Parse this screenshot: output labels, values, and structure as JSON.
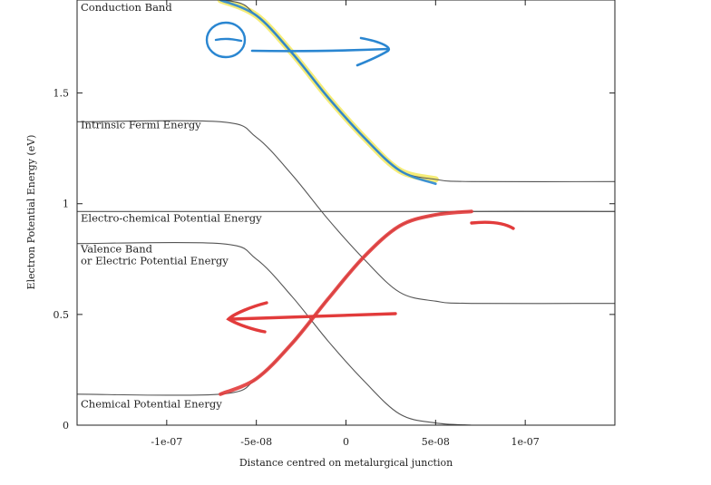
{
  "chart_data": {
    "type": "line",
    "title": "",
    "xlabel": "Distance centred on metalurgical junction",
    "ylabel": "Electron Potential Energy (eV)",
    "xlim": [
      -1.5e-07,
      1.5e-07
    ],
    "ylim": [
      0,
      1.92
    ],
    "x_ticks": [
      {
        "value": -1e-07,
        "label": "-1e-07"
      },
      {
        "value": -5e-08,
        "label": "-5e-08"
      },
      {
        "value": 0,
        "label": "0"
      },
      {
        "value": 5e-08,
        "label": "5e-08"
      },
      {
        "value": 1e-07,
        "label": "1e-07"
      }
    ],
    "y_ticks": [
      {
        "value": 0,
        "label": "0"
      },
      {
        "value": 0.5,
        "label": "0.5"
      },
      {
        "value": 1,
        "label": "1"
      },
      {
        "value": 1.5,
        "label": "1.5"
      }
    ],
    "grid": false,
    "series": [
      {
        "name": "Conduction Band",
        "label_lines": [
          "Conduction Band"
        ],
        "label_y": 1.87,
        "x": [
          -1.5e-07,
          -7e-08,
          -5e-08,
          -3e-08,
          -1e-08,
          1e-08,
          3e-08,
          5e-08,
          7e-08,
          1.5e-07
        ],
        "y": [
          1.92,
          1.92,
          1.85,
          1.68,
          1.48,
          1.3,
          1.15,
          1.11,
          1.1,
          1.1
        ]
      },
      {
        "name": "Intrinsic Fermi Energy",
        "label_lines": [
          "Intrinsic Fermi Energy"
        ],
        "label_y": 1.34,
        "x": [
          -1.5e-07,
          -7e-08,
          -5e-08,
          -3e-08,
          -1e-08,
          1e-08,
          3e-08,
          5e-08,
          7e-08,
          1.5e-07
        ],
        "y": [
          1.37,
          1.37,
          1.3,
          1.13,
          0.93,
          0.75,
          0.6,
          0.56,
          0.55,
          0.55
        ]
      },
      {
        "name": "Electro-chemical Potential Energy",
        "label_lines": [
          "Electro-chemical Potential Energy"
        ],
        "label_y": 0.92,
        "x": [
          -1.5e-07,
          1.5e-07
        ],
        "y": [
          0.965,
          0.965
        ]
      },
      {
        "name": "Valence Band or Electric Potential Energy",
        "label_lines": [
          "Valence  Band",
          "or Electric Potential Energy"
        ],
        "label_y": 0.78,
        "x": [
          -1.5e-07,
          -7e-08,
          -5e-08,
          -3e-08,
          -1e-08,
          1e-08,
          3e-08,
          5e-08,
          7e-08
        ],
        "y": [
          0.82,
          0.82,
          0.75,
          0.58,
          0.38,
          0.2,
          0.05,
          0.01,
          0
        ]
      },
      {
        "name": "Chemical Potential Energy",
        "label_lines": [
          "Chemical Potential Energy"
        ],
        "label_y": 0.08,
        "x": [
          -1.5e-07,
          -7e-08,
          -5e-08,
          -3e-08,
          -1e-08,
          1e-08,
          3e-08,
          5e-08,
          7e-08,
          1.5e-07
        ],
        "y": [
          0.14,
          0.14,
          0.21,
          0.37,
          0.57,
          0.76,
          0.9,
          0.95,
          0.965,
          0.965
        ]
      }
    ],
    "annotations": [
      {
        "kind": "highlight",
        "color": "#f2e64a",
        "x": [
          -7e-08,
          -5e-08,
          -3e-08,
          -1e-08,
          1e-08,
          3e-08,
          5e-08
        ],
        "y": [
          1.92,
          1.85,
          1.68,
          1.48,
          1.3,
          1.15,
          1.11
        ]
      },
      {
        "kind": "stroke",
        "color": "#2a86d1",
        "x": [
          -7e-08,
          -5e-08,
          -3e-08,
          -1e-08,
          1e-08,
          3e-08,
          5e-08
        ],
        "y": [
          1.92,
          1.85,
          1.68,
          1.48,
          1.3,
          1.15,
          1.09
        ]
      },
      {
        "kind": "electron-arrow",
        "color": "#2a86d1"
      },
      {
        "kind": "stroke",
        "color": "#e23b3b",
        "x": [
          -7e-08,
          -5e-08,
          -3e-08,
          -1e-08,
          1e-08,
          3e-08,
          5e-08,
          7e-08
        ],
        "y": [
          0.14,
          0.21,
          0.37,
          0.57,
          0.76,
          0.9,
          0.95,
          0.965
        ]
      },
      {
        "kind": "left-arrow",
        "color": "#e23b3b"
      }
    ]
  }
}
